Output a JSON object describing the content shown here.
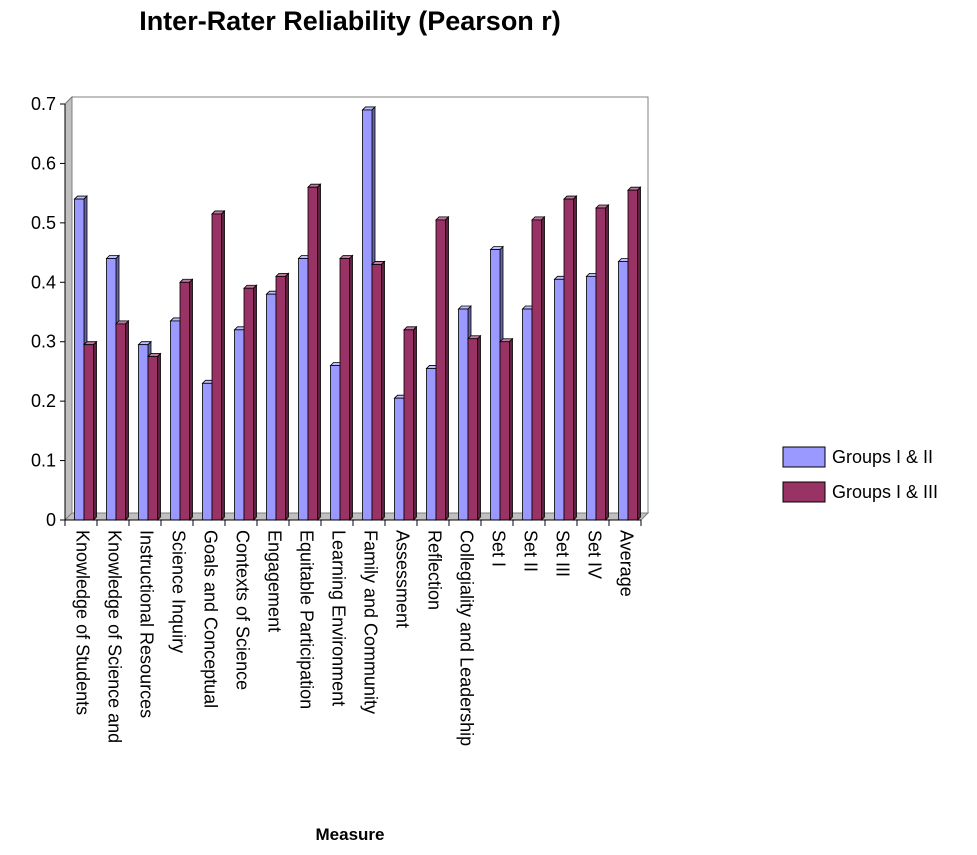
{
  "chart_data": {
    "type": "bar",
    "title": "Inter-Rater Reliability (Pearson r)",
    "xlabel": "Measure",
    "ylabel": "",
    "ylim": [
      0,
      0.7
    ],
    "yticks": [
      "0",
      "0.1",
      "0.2",
      "0.3",
      "0.4",
      "0.5",
      "0.6",
      "0.7"
    ],
    "grid": true,
    "legend_position": "right",
    "categories": [
      "Knowledge of Students",
      "Knowledge of Science and",
      "Instructional Resources",
      "Science Inquiry",
      "Goals and Conceptual",
      "Contexts of Science",
      "Engagement",
      "Equitable Participation",
      "Learning Environment",
      "Family and Community",
      "Assessment",
      "Reflection",
      "Collegiality and Leadership",
      "Set I",
      "Set II",
      "Set III",
      "Set IV",
      "Average"
    ],
    "series": [
      {
        "name": "Groups I & II",
        "color": "#9999ff",
        "values": [
          0.54,
          0.44,
          0.295,
          0.335,
          0.23,
          0.32,
          0.38,
          0.44,
          0.26,
          0.69,
          0.205,
          0.255,
          0.355,
          0.455,
          0.355,
          0.405,
          0.41,
          0.435
        ]
      },
      {
        "name": "Groups I & III",
        "color": "#993366",
        "values": [
          0.295,
          0.33,
          0.275,
          0.4,
          0.515,
          0.39,
          0.41,
          0.56,
          0.44,
          0.43,
          0.32,
          0.505,
          0.305,
          0.3,
          0.505,
          0.54,
          0.525,
          0.555
        ]
      }
    ]
  }
}
